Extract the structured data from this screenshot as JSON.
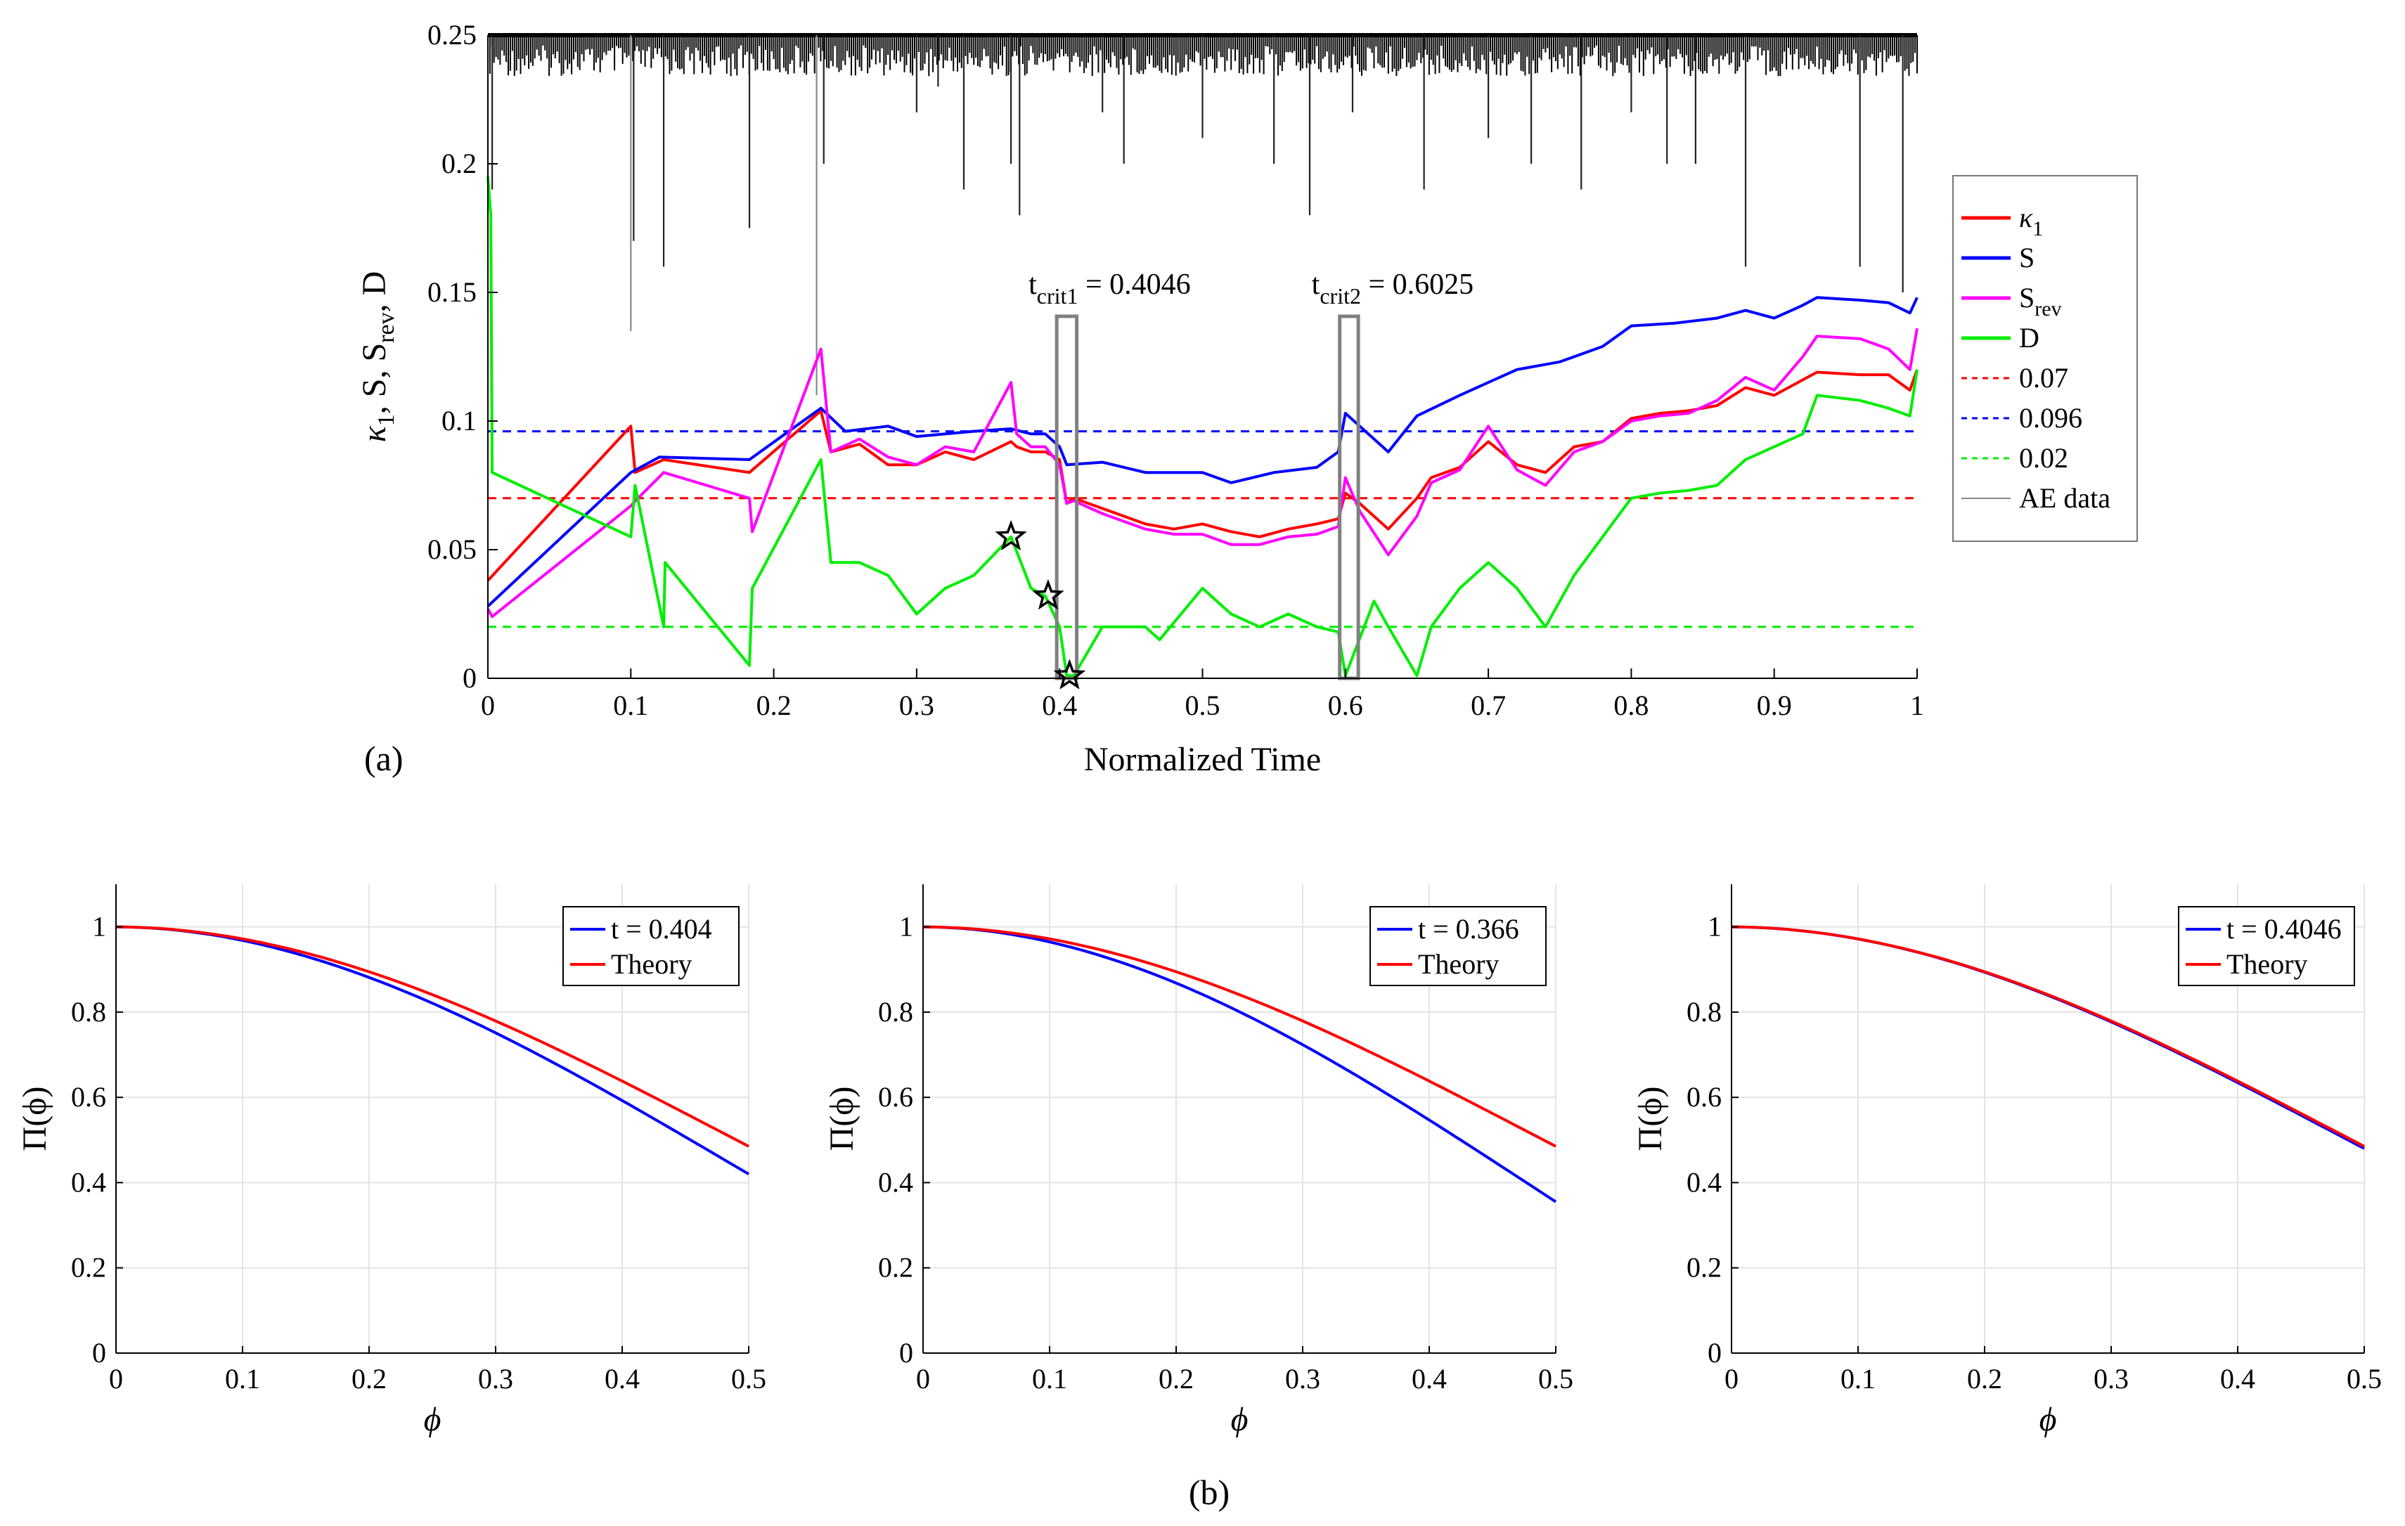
{
  "figure": {
    "panel_a": "(a)",
    "panel_b": "(b)"
  },
  "chart_data": [
    {
      "id": "a",
      "type": "line",
      "xlabel": "Normalized Time",
      "ylabel_parts": [
        "κ",
        "1",
        ", S, S",
        "rev",
        ", D"
      ],
      "xlim": [
        0,
        1
      ],
      "ylim": [
        0,
        0.25
      ],
      "xticks": [
        0,
        0.1,
        0.2,
        0.3,
        0.4,
        0.5,
        0.6,
        0.7,
        0.8,
        0.9,
        1
      ],
      "xtick_labels": [
        "0",
        "0.1",
        "0.2",
        "0.3",
        "0.4",
        "0.5",
        "0.6",
        "0.7",
        "0.8",
        "0.9",
        "1"
      ],
      "yticks": [
        0,
        0.05,
        0.1,
        0.15,
        0.2,
        0.25
      ],
      "ytick_labels": [
        "0",
        "0.05",
        "0.1",
        "0.15",
        "0.2",
        "0.25"
      ],
      "annotations": [
        {
          "sub": "crit1",
          "value_text": "= 0.4046",
          "t_range": [
            0.398,
            0.412
          ]
        },
        {
          "sub": "crit2",
          "value_text": "= 0.6025",
          "t_range": [
            0.596,
            0.609
          ]
        }
      ],
      "stars": [
        {
          "x": 0.366,
          "y": 0.055
        },
        {
          "x": 0.392,
          "y": 0.032
        },
        {
          "x": 0.407,
          "y": 0.001
        }
      ],
      "legend": [
        {
          "label_main": "κ",
          "label_sub": "1",
          "color": "#ff0000",
          "style": "solid"
        },
        {
          "label_main": "S",
          "label_sub": "",
          "color": "#0000ff",
          "style": "solid"
        },
        {
          "label_main": "S",
          "label_sub": "rev",
          "color": "#ff00ff",
          "style": "solid"
        },
        {
          "label_main": "D",
          "label_sub": "",
          "color": "#00ee00",
          "style": "solid"
        },
        {
          "label_main": "0.07",
          "label_sub": "",
          "color": "#ff0000",
          "style": "dashed"
        },
        {
          "label_main": "0.096",
          "label_sub": "",
          "color": "#0000ff",
          "style": "dashed"
        },
        {
          "label_main": "0.02",
          "label_sub": "",
          "color": "#00ee00",
          "style": "dashed"
        },
        {
          "label_main": "AE data",
          "label_sub": "",
          "color": "#000000",
          "style": "thin"
        }
      ],
      "thresholds": [
        {
          "y": 0.07,
          "color": "#ff0000"
        },
        {
          "y": 0.096,
          "color": "#0000ff"
        },
        {
          "y": 0.02,
          "color": "#00ee00"
        }
      ],
      "ae_spikes": [
        [
          0.003,
          0.19
        ],
        [
          0.1,
          0.135
        ],
        [
          0.102,
          0.17
        ],
        [
          0.123,
          0.16
        ],
        [
          0.183,
          0.175
        ],
        [
          0.23,
          0.11
        ],
        [
          0.235,
          0.2
        ],
        [
          0.3,
          0.22
        ],
        [
          0.315,
          0.23
        ],
        [
          0.333,
          0.19
        ],
        [
          0.366,
          0.2
        ],
        [
          0.372,
          0.18
        ],
        [
          0.43,
          0.22
        ],
        [
          0.445,
          0.2
        ],
        [
          0.5,
          0.21
        ],
        [
          0.55,
          0.2
        ],
        [
          0.575,
          0.18
        ],
        [
          0.605,
          0.22
        ],
        [
          0.655,
          0.19
        ],
        [
          0.7,
          0.21
        ],
        [
          0.73,
          0.2
        ],
        [
          0.765,
          0.19
        ],
        [
          0.8,
          0.22
        ],
        [
          0.825,
          0.2
        ],
        [
          0.845,
          0.2
        ],
        [
          0.88,
          0.16
        ],
        [
          0.96,
          0.16
        ],
        [
          0.99,
          0.15
        ]
      ],
      "series": [
        {
          "name": "κ1",
          "color": "#ff0000",
          "width": 4,
          "x": [
            0,
            0.1,
            0.103,
            0.123,
            0.183,
            0.233,
            0.24,
            0.26,
            0.28,
            0.3,
            0.32,
            0.34,
            0.366,
            0.37,
            0.38,
            0.39,
            0.4,
            0.405,
            0.41,
            0.43,
            0.46,
            0.48,
            0.5,
            0.52,
            0.54,
            0.56,
            0.58,
            0.595,
            0.6,
            0.61,
            0.63,
            0.65,
            0.66,
            0.68,
            0.7,
            0.72,
            0.74,
            0.76,
            0.78,
            0.8,
            0.82,
            0.84,
            0.86,
            0.88,
            0.9,
            0.92,
            0.93,
            0.96,
            0.98,
            0.995,
            1
          ],
          "y": [
            0.038,
            0.098,
            0.08,
            0.085,
            0.08,
            0.104,
            0.088,
            0.091,
            0.083,
            0.083,
            0.088,
            0.085,
            0.092,
            0.09,
            0.088,
            0.088,
            0.085,
            0.068,
            0.07,
            0.066,
            0.06,
            0.058,
            0.06,
            0.057,
            0.055,
            0.058,
            0.06,
            0.062,
            0.072,
            0.068,
            0.058,
            0.07,
            0.078,
            0.082,
            0.092,
            0.083,
            0.08,
            0.09,
            0.092,
            0.101,
            0.103,
            0.104,
            0.106,
            0.113,
            0.11,
            0.116,
            0.119,
            0.118,
            0.118,
            0.112,
            0.12
          ]
        },
        {
          "name": "S",
          "color": "#0000ff",
          "width": 4,
          "x": [
            0,
            0.1,
            0.12,
            0.183,
            0.233,
            0.25,
            0.28,
            0.3,
            0.34,
            0.366,
            0.38,
            0.39,
            0.4,
            0.405,
            0.43,
            0.46,
            0.5,
            0.52,
            0.55,
            0.58,
            0.595,
            0.6,
            0.62,
            0.63,
            0.65,
            0.68,
            0.7,
            0.72,
            0.75,
            0.78,
            0.8,
            0.83,
            0.86,
            0.88,
            0.9,
            0.92,
            0.93,
            0.96,
            0.98,
            0.995,
            1
          ],
          "y": [
            0.028,
            0.08,
            0.086,
            0.085,
            0.105,
            0.096,
            0.098,
            0.094,
            0.096,
            0.097,
            0.095,
            0.095,
            0.09,
            0.083,
            0.084,
            0.08,
            0.08,
            0.076,
            0.08,
            0.082,
            0.088,
            0.103,
            0.093,
            0.088,
            0.102,
            0.11,
            0.115,
            0.12,
            0.123,
            0.129,
            0.137,
            0.138,
            0.14,
            0.143,
            0.14,
            0.145,
            0.148,
            0.147,
            0.146,
            0.142,
            0.148
          ]
        },
        {
          "name": "Srev",
          "color": "#ff00ff",
          "width": 4,
          "x": [
            0,
            0.003,
            0.1,
            0.105,
            0.123,
            0.183,
            0.185,
            0.233,
            0.24,
            0.26,
            0.28,
            0.3,
            0.32,
            0.34,
            0.366,
            0.37,
            0.38,
            0.39,
            0.4,
            0.405,
            0.41,
            0.43,
            0.46,
            0.48,
            0.5,
            0.52,
            0.54,
            0.56,
            0.58,
            0.595,
            0.6,
            0.61,
            0.63,
            0.65,
            0.66,
            0.68,
            0.7,
            0.72,
            0.74,
            0.76,
            0.78,
            0.8,
            0.82,
            0.84,
            0.86,
            0.88,
            0.9,
            0.92,
            0.93,
            0.96,
            0.98,
            0.995,
            1
          ],
          "y": [
            0.027,
            0.024,
            0.067,
            0.07,
            0.08,
            0.07,
            0.057,
            0.128,
            0.088,
            0.093,
            0.086,
            0.083,
            0.09,
            0.088,
            0.115,
            0.095,
            0.09,
            0.09,
            0.083,
            0.068,
            0.069,
            0.064,
            0.058,
            0.056,
            0.056,
            0.052,
            0.052,
            0.055,
            0.056,
            0.059,
            0.078,
            0.065,
            0.048,
            0.063,
            0.076,
            0.081,
            0.098,
            0.081,
            0.075,
            0.088,
            0.092,
            0.1,
            0.102,
            0.103,
            0.108,
            0.117,
            0.112,
            0.125,
            0.133,
            0.132,
            0.128,
            0.12,
            0.136
          ]
        },
        {
          "name": "D",
          "color": "#00ee00",
          "width": 4,
          "x": [
            0,
            0.002,
            0.003,
            0.1,
            0.103,
            0.123,
            0.124,
            0.183,
            0.185,
            0.233,
            0.24,
            0.26,
            0.28,
            0.3,
            0.32,
            0.34,
            0.366,
            0.38,
            0.39,
            0.4,
            0.405,
            0.41,
            0.43,
            0.46,
            0.47,
            0.5,
            0.52,
            0.54,
            0.56,
            0.58,
            0.595,
            0.6,
            0.62,
            0.63,
            0.65,
            0.66,
            0.68,
            0.7,
            0.72,
            0.74,
            0.76,
            0.78,
            0.8,
            0.82,
            0.84,
            0.86,
            0.88,
            0.9,
            0.92,
            0.93,
            0.96,
            0.98,
            0.995,
            1
          ],
          "y": [
            0.195,
            0.18,
            0.08,
            0.055,
            0.075,
            0.02,
            0.045,
            0.005,
            0.035,
            0.085,
            0.045,
            0.045,
            0.04,
            0.025,
            0.035,
            0.04,
            0.055,
            0.035,
            0.032,
            0.02,
            0.001,
            0.001,
            0.02,
            0.02,
            0.015,
            0.035,
            0.025,
            0.02,
            0.025,
            0.02,
            0.018,
            0.001,
            0.03,
            0.02,
            0.001,
            0.02,
            0.035,
            0.045,
            0.035,
            0.02,
            0.04,
            0.055,
            0.07,
            0.072,
            0.073,
            0.075,
            0.085,
            0.09,
            0.095,
            0.11,
            0.108,
            0.105,
            0.102,
            0.12
          ]
        }
      ]
    },
    {
      "id": "b1",
      "type": "line",
      "xlabel": "ϕ",
      "ylabel": "Π(ϕ)",
      "xlim": [
        0,
        0.5
      ],
      "ylim": [
        0,
        1.1
      ],
      "xticks": [
        0,
        0.1,
        0.2,
        0.3,
        0.4,
        0.5
      ],
      "xtick_labels": [
        "0",
        "0.1",
        "0.2",
        "0.3",
        "0.4",
        "0.5"
      ],
      "yticks": [
        0,
        0.2,
        0.4,
        0.6,
        0.8,
        1
      ],
      "ytick_labels": [
        "0",
        "0.2",
        "0.4",
        "0.6",
        "0.8",
        "1"
      ],
      "series": [
        {
          "name": "t = 0.404",
          "color": "#0000ff",
          "end_value": 0.42
        },
        {
          "name": "Theory",
          "color": "#ff0000",
          "end_value": 0.485
        }
      ]
    },
    {
      "id": "b2",
      "type": "line",
      "xlabel": "ϕ",
      "ylabel": "Π(ϕ)",
      "xlim": [
        0,
        0.5
      ],
      "ylim": [
        0,
        1.1
      ],
      "xticks": [
        0,
        0.1,
        0.2,
        0.3,
        0.4,
        0.5
      ],
      "xtick_labels": [
        "0",
        "0.1",
        "0.2",
        "0.3",
        "0.4",
        "0.5"
      ],
      "yticks": [
        0,
        0.2,
        0.4,
        0.6,
        0.8,
        1
      ],
      "ytick_labels": [
        "0",
        "0.2",
        "0.4",
        "0.6",
        "0.8",
        "1"
      ],
      "series": [
        {
          "name": "t = 0.366",
          "color": "#0000ff",
          "end_value": 0.355
        },
        {
          "name": "Theory",
          "color": "#ff0000",
          "end_value": 0.485
        }
      ]
    },
    {
      "id": "b3",
      "type": "line",
      "xlabel": "ϕ",
      "ylabel": "Π(ϕ)",
      "xlim": [
        0,
        0.5
      ],
      "ylim": [
        0,
        1.1
      ],
      "xticks": [
        0,
        0.1,
        0.2,
        0.3,
        0.4,
        0.5
      ],
      "xtick_labels": [
        "0",
        "0.1",
        "0.2",
        "0.3",
        "0.4",
        "0.5"
      ],
      "yticks": [
        0,
        0.2,
        0.4,
        0.6,
        0.8,
        1
      ],
      "ytick_labels": [
        "0",
        "0.2",
        "0.4",
        "0.6",
        "0.8",
        "1"
      ],
      "series": [
        {
          "name": "t = 0.4046",
          "color": "#0000ff",
          "end_value": 0.48
        },
        {
          "name": "Theory",
          "color": "#ff0000",
          "end_value": 0.485
        }
      ]
    }
  ]
}
